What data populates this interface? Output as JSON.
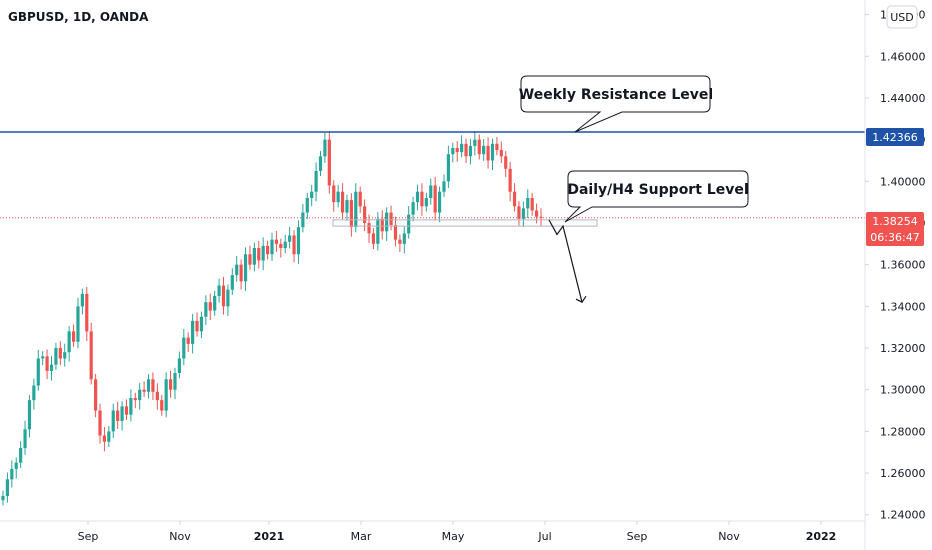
{
  "header": {
    "title": "GBPUSD, 1D, OANDA"
  },
  "currency_button": {
    "label": "USD"
  },
  "annotations": {
    "resistance_label": "Weekly Resistance Level",
    "support_label": "Daily/H4 Support Level"
  },
  "price_tags": {
    "resistance": {
      "value": "1.42366",
      "color": "#1e53a8"
    },
    "last": {
      "value": "1.38254",
      "countdown": "06:36:47",
      "color": "#f05350"
    }
  },
  "colors": {
    "up": "#26a69a",
    "down": "#ef5350",
    "resistance_line": "#1e53a8",
    "last_line": "#ef5350"
  },
  "chart_data": {
    "type": "candlestick",
    "title": "GBPUSD, 1D, OANDA",
    "y_ticks": [
      "1.24000",
      "1.26000",
      "1.28000",
      "1.30000",
      "1.32000",
      "1.34000",
      "1.36000",
      "1.38000",
      "1.40000",
      "1.42000",
      "1.44000",
      "1.46000",
      "1.48000"
    ],
    "x_ticks": [
      "Sep",
      "Nov",
      "2021",
      "Mar",
      "May",
      "Jul",
      "Sep",
      "Nov",
      "2022"
    ],
    "ylim": [
      1.237,
      1.487
    ],
    "resistance_level": 1.42366,
    "last_price": 1.38254,
    "support_zone": [
      1.3785,
      1.3815
    ],
    "price_path": [
      [
        1.249,
        1.257,
        1.262,
        1.265,
        1.272,
        1.281,
        1.295,
        1.302,
        1.315,
        1.316,
        1.309,
        1.312,
        1.32,
        1.315,
        1.318,
        1.328,
        1.323,
        1.34,
        1.346,
        1.328,
        1.305,
        1.29,
        1.278,
        1.275,
        1.28,
        1.29,
        1.285,
        1.292,
        1.288,
        1.296,
        1.295,
        1.3,
        1.299,
        1.305,
        1.299,
        1.295,
        1.29,
        1.305,
        1.3,
        1.308,
        1.315,
        1.325,
        1.322,
        1.333,
        1.328,
        1.335,
        1.342,
        1.338,
        1.345,
        1.35,
        1.34,
        1.348,
        1.355,
        1.36,
        1.352,
        1.365,
        1.36,
        1.368,
        1.362,
        1.369,
        1.365,
        1.372,
        1.37,
        1.368,
        1.371,
        1.374,
        1.365,
        1.378,
        1.385,
        1.392,
        1.395,
        1.405,
        1.412,
        1.42,
        1.398,
        1.39,
        1.395,
        1.385,
        1.391,
        1.378,
        1.395,
        1.388,
        1.38,
        1.375,
        1.37,
        1.382,
        1.376,
        1.385,
        1.379,
        1.372,
        1.37,
        1.375,
        1.384,
        1.39,
        1.395,
        1.388,
        1.392,
        1.398,
        1.385,
        1.395,
        1.4,
        1.413,
        1.416,
        1.414,
        1.418,
        1.412,
        1.417,
        1.42,
        1.413,
        1.417,
        1.41,
        1.418,
        1.415,
        1.412,
        1.406,
        1.395,
        1.388,
        1.382,
        1.387,
        1.392,
        1.386,
        1.383,
        1.3825
      ]
    ],
    "projection": [
      [
        1.3815,
        1.3745
      ],
      [
        1.3745,
        1.3785
      ],
      [
        1.3785,
        1.342
      ]
    ]
  }
}
